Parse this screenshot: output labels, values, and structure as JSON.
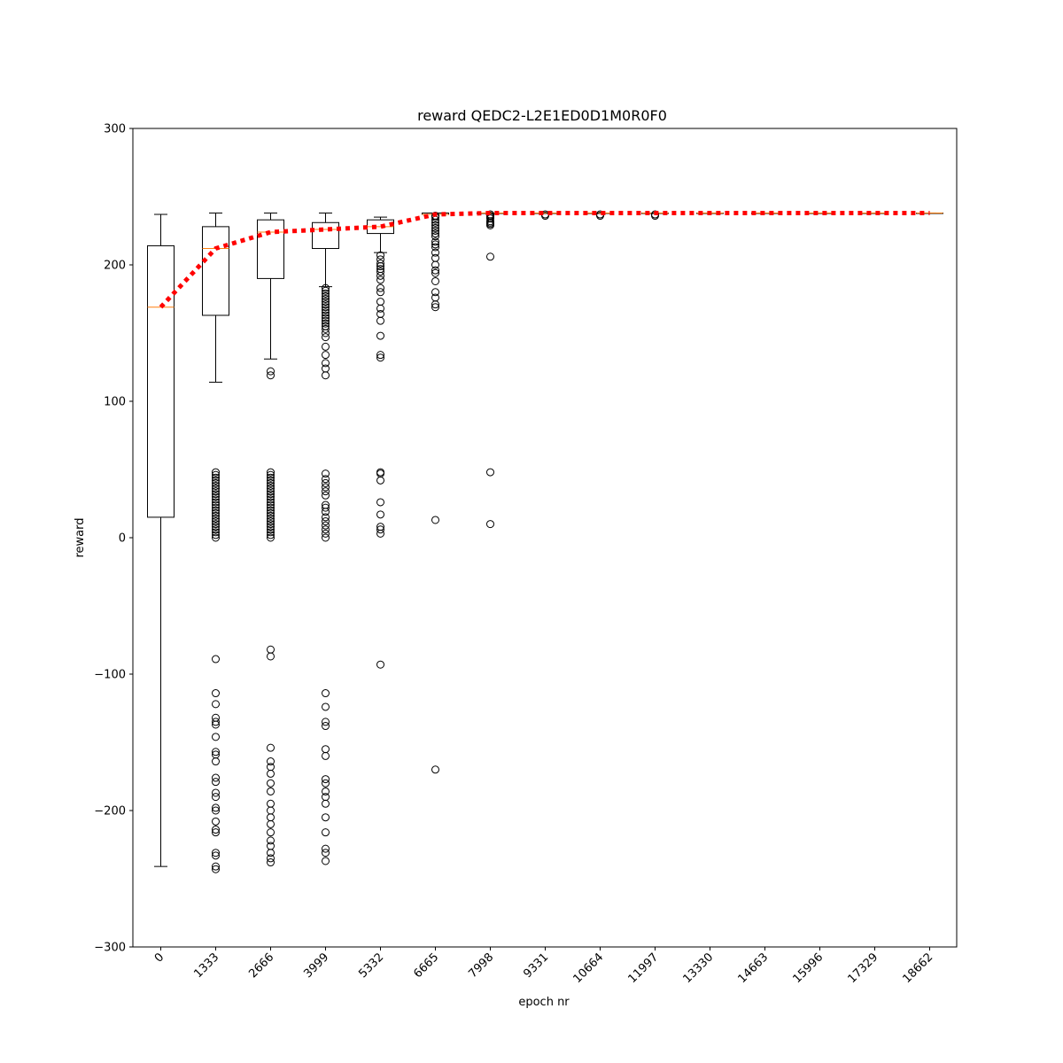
{
  "chart_data": {
    "type": "box",
    "title": "reward QEDC2-L2E1ED0D1M0R0F0",
    "xlabel": "epoch nr",
    "ylabel": "reward",
    "ylim": [
      -300,
      300
    ],
    "yticks": [
      -300,
      -200,
      -100,
      0,
      100,
      200,
      300
    ],
    "ytick_labels": [
      "−300",
      "−200",
      "−100",
      "0",
      "100",
      "200",
      "300"
    ],
    "categories": [
      "0",
      "1333",
      "2666",
      "3999",
      "5332",
      "6665",
      "7998",
      "9331",
      "10664",
      "11997",
      "13330",
      "14663",
      "15996",
      "17329",
      "18662"
    ],
    "grid": false,
    "boxes": [
      {
        "whislo": -241,
        "q1": 15,
        "med": 169,
        "q3": 214,
        "whishi": 237,
        "fliers": []
      },
      {
        "whislo": 114,
        "q1": 163,
        "med": 212,
        "q3": 228,
        "whishi": 238,
        "fliers": [
          48,
          46,
          44,
          42,
          40,
          38,
          36,
          34,
          32,
          30,
          28,
          26,
          24,
          22,
          20,
          18,
          16,
          14,
          12,
          10,
          8,
          6,
          4,
          2,
          0,
          -89,
          -114,
          -122,
          -132,
          -135,
          -137,
          -146,
          -157,
          -159,
          -164,
          -176,
          -179,
          -187,
          -190,
          -198,
          -200,
          -208,
          -214,
          -216,
          -231,
          -233,
          -241,
          -243
        ]
      },
      {
        "whislo": 131,
        "q1": 190,
        "med": 224,
        "q3": 233,
        "whishi": 238,
        "fliers": [
          122,
          119,
          48,
          46,
          44,
          42,
          40,
          38,
          36,
          34,
          32,
          30,
          28,
          26,
          24,
          22,
          20,
          18,
          16,
          14,
          12,
          10,
          8,
          6,
          4,
          2,
          0,
          -82,
          -87,
          -154,
          -164,
          -168,
          -173,
          -180,
          -186,
          -195,
          -200,
          -205,
          -210,
          -216,
          -222,
          -226,
          -231,
          -235,
          -238
        ]
      },
      {
        "whislo": 184,
        "q1": 212,
        "med": 226,
        "q3": 231,
        "whishi": 238,
        "fliers": [
          183,
          181,
          179,
          177,
          175,
          173,
          171,
          169,
          167,
          165,
          163,
          161,
          159,
          157,
          155,
          153,
          150,
          147,
          140,
          134,
          128,
          124,
          119,
          47,
          43,
          40,
          37,
          34,
          31,
          24,
          22,
          19,
          15,
          12,
          9,
          6,
          3,
          0,
          -114,
          -124,
          -135,
          -138,
          -155,
          -160,
          -177,
          -180,
          -186,
          -190,
          -195,
          -205,
          -216,
          -228,
          -231,
          -237
        ]
      },
      {
        "whislo": 209,
        "q1": 223,
        "med": 228,
        "q3": 233,
        "whishi": 235,
        "fliers": [
          207,
          204,
          201,
          199,
          197,
          195,
          192,
          189,
          183,
          180,
          173,
          168,
          164,
          159,
          148,
          134,
          132,
          48,
          47,
          42,
          26,
          17,
          8,
          6,
          3,
          -93
        ]
      },
      {
        "whislo": 237,
        "q1": 237,
        "med": 237,
        "q3": 238,
        "whishi": 238,
        "fliers": [
          236,
          235,
          233,
          231,
          229,
          227,
          225,
          223,
          221,
          217,
          215,
          213,
          209,
          205,
          200,
          196,
          194,
          188,
          180,
          176,
          171,
          169,
          13,
          -170
        ]
      },
      {
        "whislo": 238,
        "q1": 238,
        "med": 238,
        "q3": 238,
        "whishi": 238,
        "fliers": [
          237,
          236,
          235,
          234,
          232,
          231,
          230,
          229,
          206,
          48,
          10
        ]
      },
      {
        "whislo": 238,
        "q1": 238,
        "med": 238,
        "q3": 238,
        "whishi": 238,
        "fliers": [
          237,
          236
        ]
      },
      {
        "whislo": 238,
        "q1": 238,
        "med": 238,
        "q3": 238,
        "whishi": 238,
        "fliers": [
          237,
          236
        ]
      },
      {
        "whislo": 238,
        "q1": 238,
        "med": 238,
        "q3": 238,
        "whishi": 238,
        "fliers": [
          237,
          236
        ]
      },
      {
        "whislo": 238,
        "q1": 238,
        "med": 238,
        "q3": 238,
        "whishi": 238,
        "fliers": []
      },
      {
        "whislo": 238,
        "q1": 238,
        "med": 238,
        "q3": 238,
        "whishi": 238,
        "fliers": []
      },
      {
        "whislo": 238,
        "q1": 238,
        "med": 238,
        "q3": 238,
        "whishi": 238,
        "fliers": []
      },
      {
        "whislo": 238,
        "q1": 238,
        "med": 238,
        "q3": 238,
        "whishi": 238,
        "fliers": []
      },
      {
        "whislo": 238,
        "q1": 238,
        "med": 238,
        "q3": 238,
        "whishi": 238,
        "fliers": []
      }
    ],
    "mean_line": {
      "values": [
        169,
        212,
        224,
        226,
        228,
        237,
        238,
        238,
        238,
        238,
        238,
        238,
        238,
        238,
        238
      ],
      "color": "#ff0000",
      "style": "dotted"
    },
    "colors": {
      "box": "#000000",
      "median": "#ff7f0e",
      "mean_line": "#ff0000"
    }
  }
}
